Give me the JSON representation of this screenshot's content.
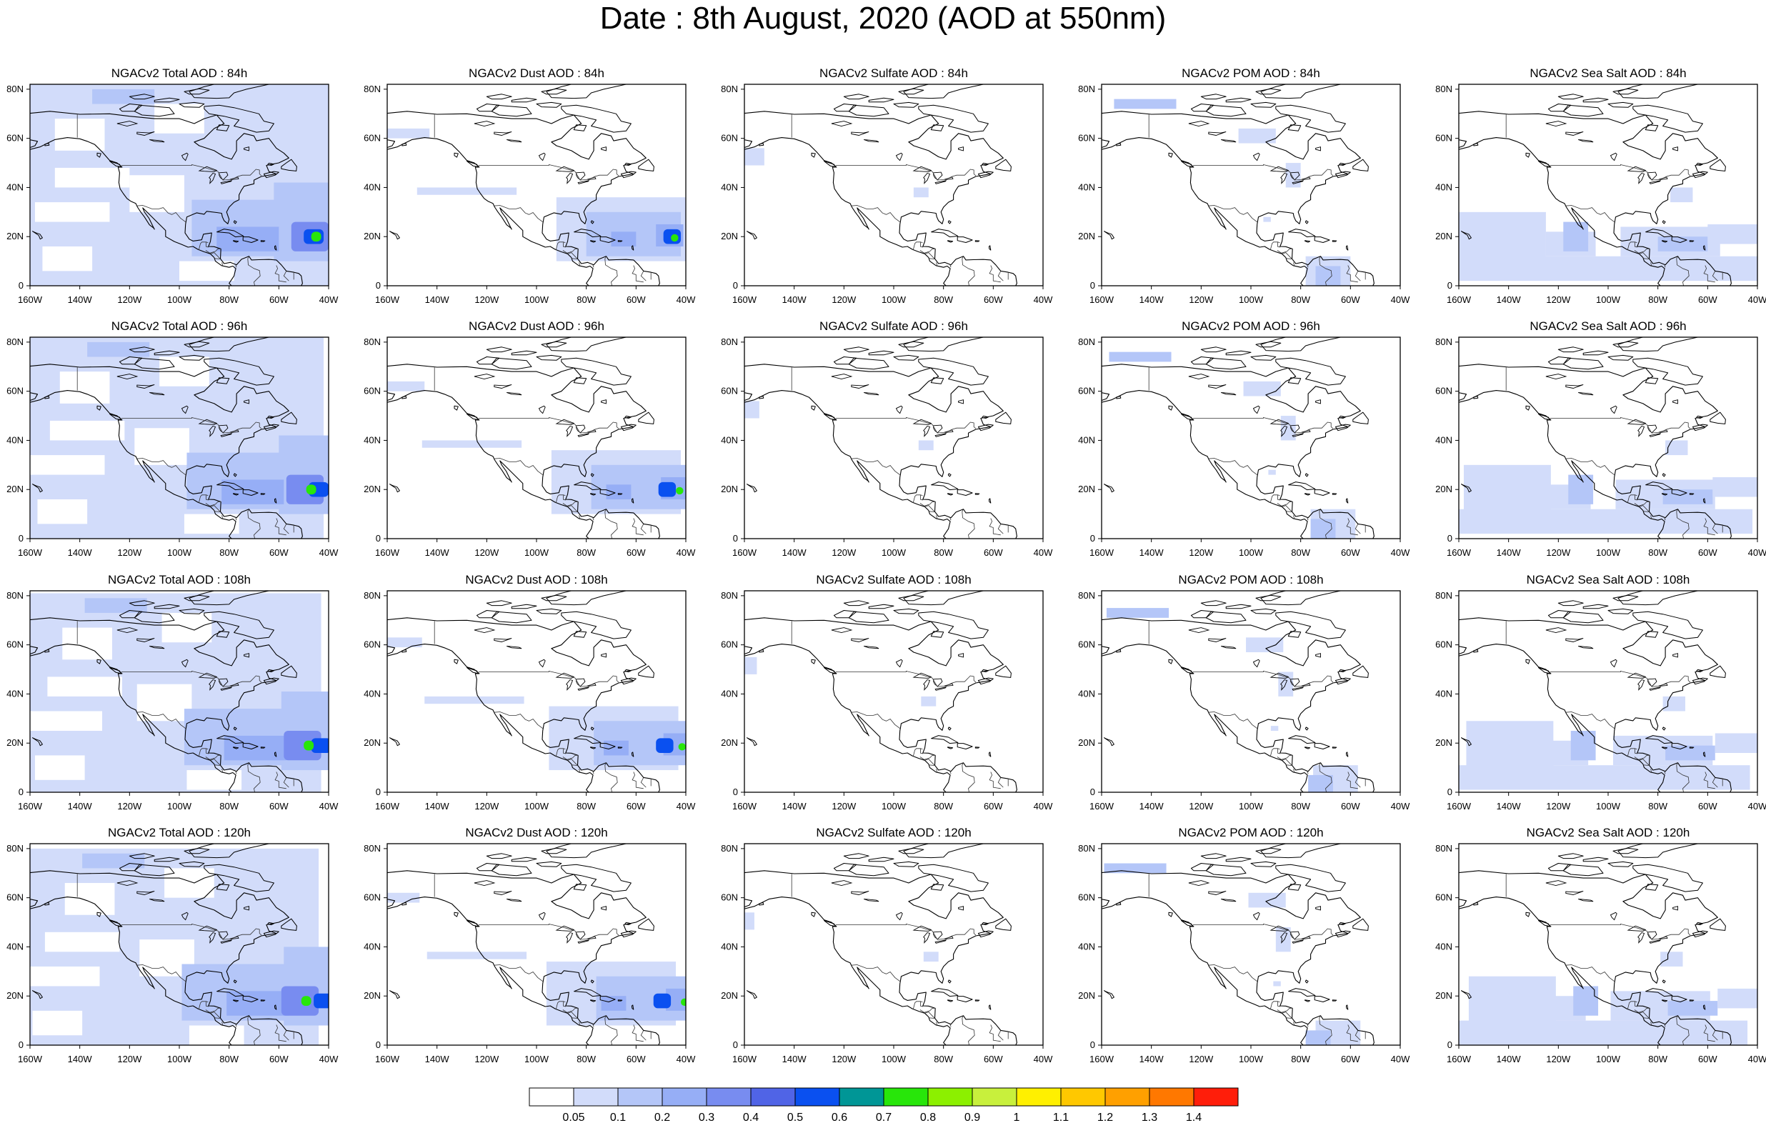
{
  "title": "Date : 8th August, 2020 (AOD at 550nm)",
  "lat_ticks": [
    "0",
    "20N",
    "40N",
    "60N",
    "80N"
  ],
  "lon_ticks": [
    "160W",
    "140W",
    "120W",
    "100W",
    "80W",
    "60W",
    "40W"
  ],
  "panels": [
    [
      {
        "title": "NGACv2 Total AOD : 84h",
        "species": "total"
      },
      {
        "title": "NGACv2 Dust AOD : 84h",
        "species": "dust"
      },
      {
        "title": "NGACv2 Sulfate AOD : 84h",
        "species": "sulfate"
      },
      {
        "title": "NGACv2 POM AOD : 84h",
        "species": "pom"
      },
      {
        "title": "NGACv2 Sea Salt AOD : 84h",
        "species": "seasalt"
      }
    ],
    [
      {
        "title": "NGACv2 Total AOD : 96h",
        "species": "total"
      },
      {
        "title": "NGACv2 Dust AOD : 96h",
        "species": "dust"
      },
      {
        "title": "NGACv2 Sulfate AOD : 96h",
        "species": "sulfate"
      },
      {
        "title": "NGACv2 POM AOD : 96h",
        "species": "pom"
      },
      {
        "title": "NGACv2 Sea Salt AOD : 96h",
        "species": "seasalt"
      }
    ],
    [
      {
        "title": "NGACv2 Total AOD : 108h",
        "species": "total"
      },
      {
        "title": "NGACv2 Dust AOD : 108h",
        "species": "dust"
      },
      {
        "title": "NGACv2 Sulfate AOD : 108h",
        "species": "sulfate"
      },
      {
        "title": "NGACv2 POM AOD : 108h",
        "species": "pom"
      },
      {
        "title": "NGACv2 Sea Salt AOD : 108h",
        "species": "seasalt"
      }
    ],
    [
      {
        "title": "NGACv2 Total AOD : 120h",
        "species": "total"
      },
      {
        "title": "NGACv2 Dust AOD : 120h",
        "species": "dust"
      },
      {
        "title": "NGACv2 Sulfate AOD : 120h",
        "species": "sulfate"
      },
      {
        "title": "NGACv2 POM AOD : 120h",
        "species": "pom"
      },
      {
        "title": "NGACv2 Sea Salt  AOD : 120h",
        "species": "seasalt"
      }
    ]
  ],
  "legend": {
    "labels": [
      "0.05",
      "0.1",
      "0.2",
      "0.3",
      "0.4",
      "0.5",
      "0.6",
      "0.7",
      "0.8",
      "0.9",
      "1",
      "1.1",
      "1.2",
      "1.3",
      "1.4"
    ],
    "colors": [
      "#ffffff",
      "#d2dcfa",
      "#b4c6f8",
      "#96aef6",
      "#788cf0",
      "#5064e6",
      "#0a50f0",
      "#009696",
      "#28e60a",
      "#8cf000",
      "#c8f03c",
      "#fff000",
      "#ffc800",
      "#ffa000",
      "#ff7800",
      "#ff1e0a"
    ]
  }
}
